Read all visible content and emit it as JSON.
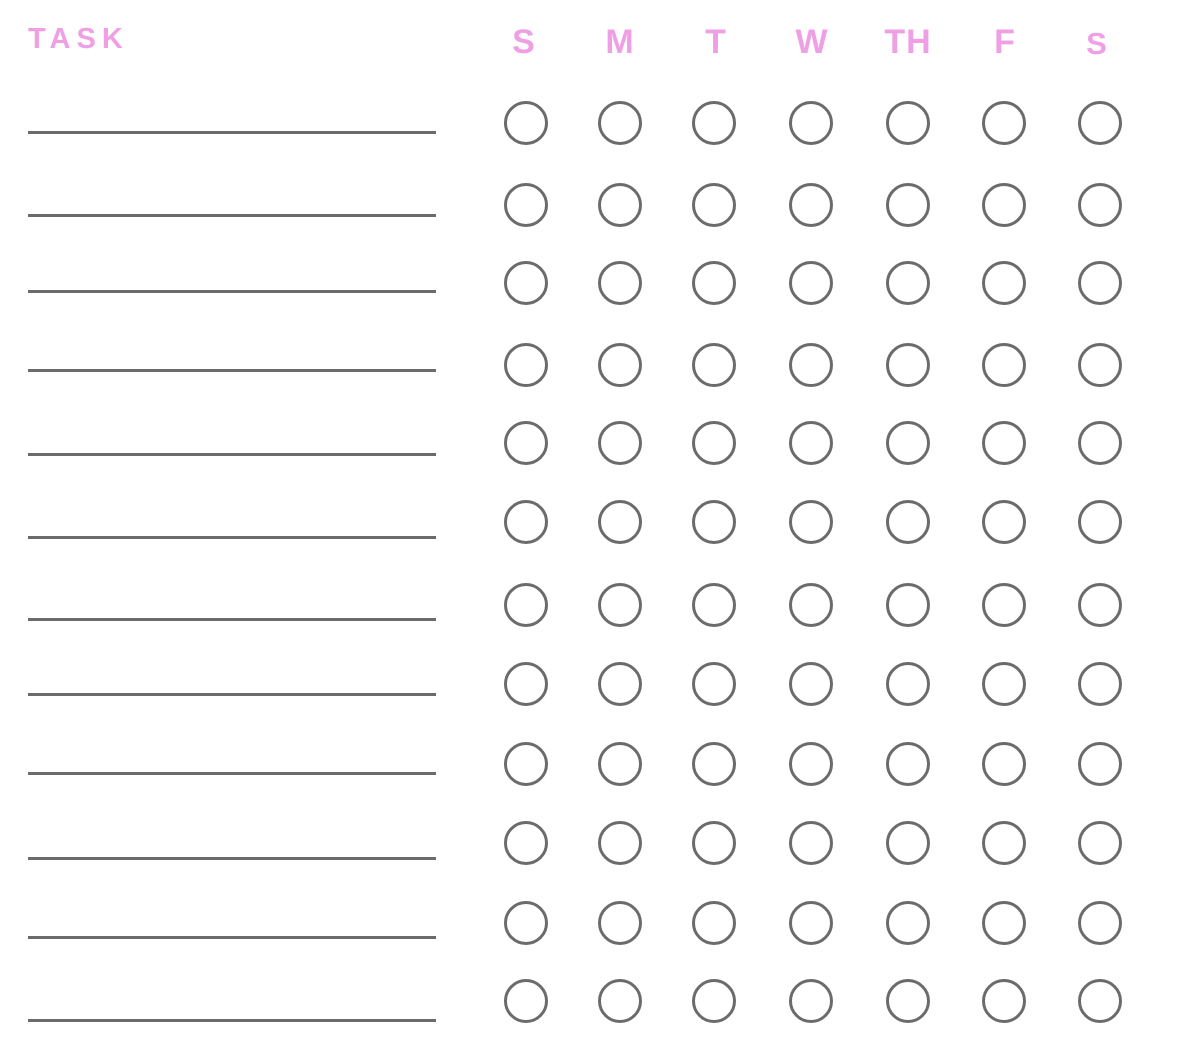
{
  "header": {
    "task_label": "TASK"
  },
  "days": [
    {
      "label": "S"
    },
    {
      "label": "M"
    },
    {
      "label": "T"
    },
    {
      "label": "W"
    },
    {
      "label": "TH"
    },
    {
      "label": "F"
    },
    {
      "label": "S"
    }
  ],
  "tasks": [
    {
      "name": ""
    },
    {
      "name": ""
    },
    {
      "name": ""
    },
    {
      "name": ""
    },
    {
      "name": ""
    },
    {
      "name": ""
    },
    {
      "name": ""
    },
    {
      "name": ""
    },
    {
      "name": ""
    },
    {
      "name": ""
    },
    {
      "name": ""
    },
    {
      "name": ""
    }
  ],
  "colors": {
    "accent_pink": "#EFA0E5",
    "line_gray": "#6B6B6B"
  }
}
